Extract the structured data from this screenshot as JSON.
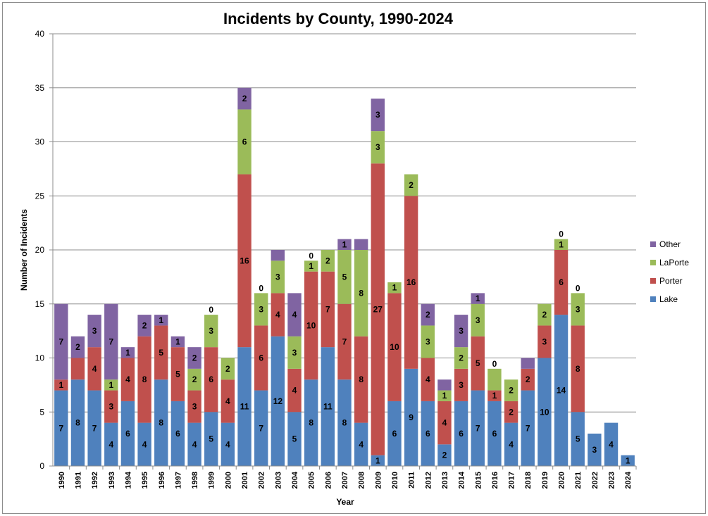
{
  "chart_data": {
    "type": "bar",
    "stacked": true,
    "title": "Incidents by County, 1990-2024",
    "xlabel": "Year",
    "ylabel": "Number of Incidents",
    "ylim": [
      0,
      40
    ],
    "yticks": [
      0,
      5,
      10,
      15,
      20,
      25,
      30,
      35,
      40
    ],
    "grid": true,
    "legend_position": "right",
    "categories": [
      "1990",
      "1991",
      "1992",
      "1993",
      "1994",
      "1995",
      "1996",
      "1997",
      "1998",
      "1999",
      "2000",
      "2001",
      "2002",
      "2003",
      "2004",
      "2005",
      "2006",
      "2007",
      "2008",
      "2009",
      "2010",
      "2011",
      "2012",
      "2013",
      "2014",
      "2015",
      "2016",
      "2017",
      "2018",
      "2019",
      "2020",
      "2021",
      "2022",
      "2023",
      "2024"
    ],
    "series": [
      {
        "name": "Lake",
        "color": "#4f81bd",
        "values": [
          7,
          8,
          7,
          4,
          6,
          4,
          8,
          6,
          4,
          5,
          4,
          11,
          7,
          12,
          5,
          8,
          11,
          8,
          4,
          1,
          6,
          9,
          6,
          2,
          6,
          7,
          6,
          4,
          7,
          10,
          14,
          5,
          3,
          4,
          1
        ],
        "labels": [
          "7",
          "8",
          "7",
          "4",
          "6",
          "4",
          "8",
          "6",
          "4",
          "5",
          "4",
          "11",
          "7",
          "12",
          "5",
          "8",
          "11",
          "8",
          "4",
          "1",
          "6",
          "9",
          "6",
          "2",
          "6",
          "7",
          "6",
          "4",
          "7",
          "10",
          "14",
          "5",
          "3",
          "4",
          "1"
        ]
      },
      {
        "name": "Porter",
        "color": "#c0504d",
        "values": [
          1,
          2,
          4,
          3,
          4,
          8,
          5,
          5,
          3,
          6,
          4,
          16,
          6,
          4,
          4,
          10,
          7,
          7,
          8,
          27,
          10,
          16,
          4,
          4,
          3,
          5,
          1,
          2,
          2,
          3,
          6,
          8,
          0,
          0,
          0
        ],
        "labels": [
          "1",
          "",
          "4",
          "3",
          "4",
          "8",
          "5",
          "5",
          "3",
          "6",
          "4",
          "16",
          "6",
          "4",
          "4",
          "10",
          "7",
          "7",
          "8",
          "27",
          "10",
          "16",
          "4",
          "4",
          "3",
          "5",
          "1",
          "2",
          "2",
          "3",
          "6",
          "8",
          "",
          "",
          ""
        ]
      },
      {
        "name": "LaPorte",
        "color": "#9bbb59",
        "values": [
          0,
          0,
          0,
          1,
          0,
          0,
          0,
          0,
          2,
          3,
          2,
          6,
          3,
          3,
          3,
          1,
          2,
          5,
          8,
          3,
          1,
          2,
          3,
          1,
          2,
          3,
          2,
          2,
          0,
          2,
          1,
          3,
          0,
          0,
          0
        ],
        "labels": [
          "",
          "",
          "",
          "1",
          "",
          "",
          "",
          "",
          "2",
          "3",
          "2",
          "6",
          "3",
          "3",
          "3",
          "1",
          "2",
          "5",
          "8",
          "3",
          "1",
          "2",
          "3",
          "1",
          "2",
          "3",
          "",
          "2",
          "",
          "2",
          "1",
          "3",
          "",
          "",
          ""
        ]
      },
      {
        "name": "Other",
        "color": "#8064a2",
        "values": [
          7,
          2,
          3,
          7,
          1,
          2,
          1,
          1,
          2,
          0,
          0,
          2,
          0,
          1,
          4,
          0,
          0,
          1,
          1,
          3,
          0,
          0,
          2,
          1,
          3,
          1,
          0,
          0,
          1,
          0,
          0,
          0,
          0,
          0,
          0
        ],
        "labels": [
          "7",
          "2",
          "3",
          "7",
          "1",
          "2",
          "1",
          "1",
          "2",
          "0",
          "",
          "2",
          "0",
          "",
          "4",
          "0",
          "",
          "1",
          "",
          "3",
          "",
          "",
          "2",
          "",
          "3",
          "1",
          "0",
          "",
          "",
          "",
          "0",
          "0",
          "",
          "",
          ""
        ]
      }
    ]
  }
}
